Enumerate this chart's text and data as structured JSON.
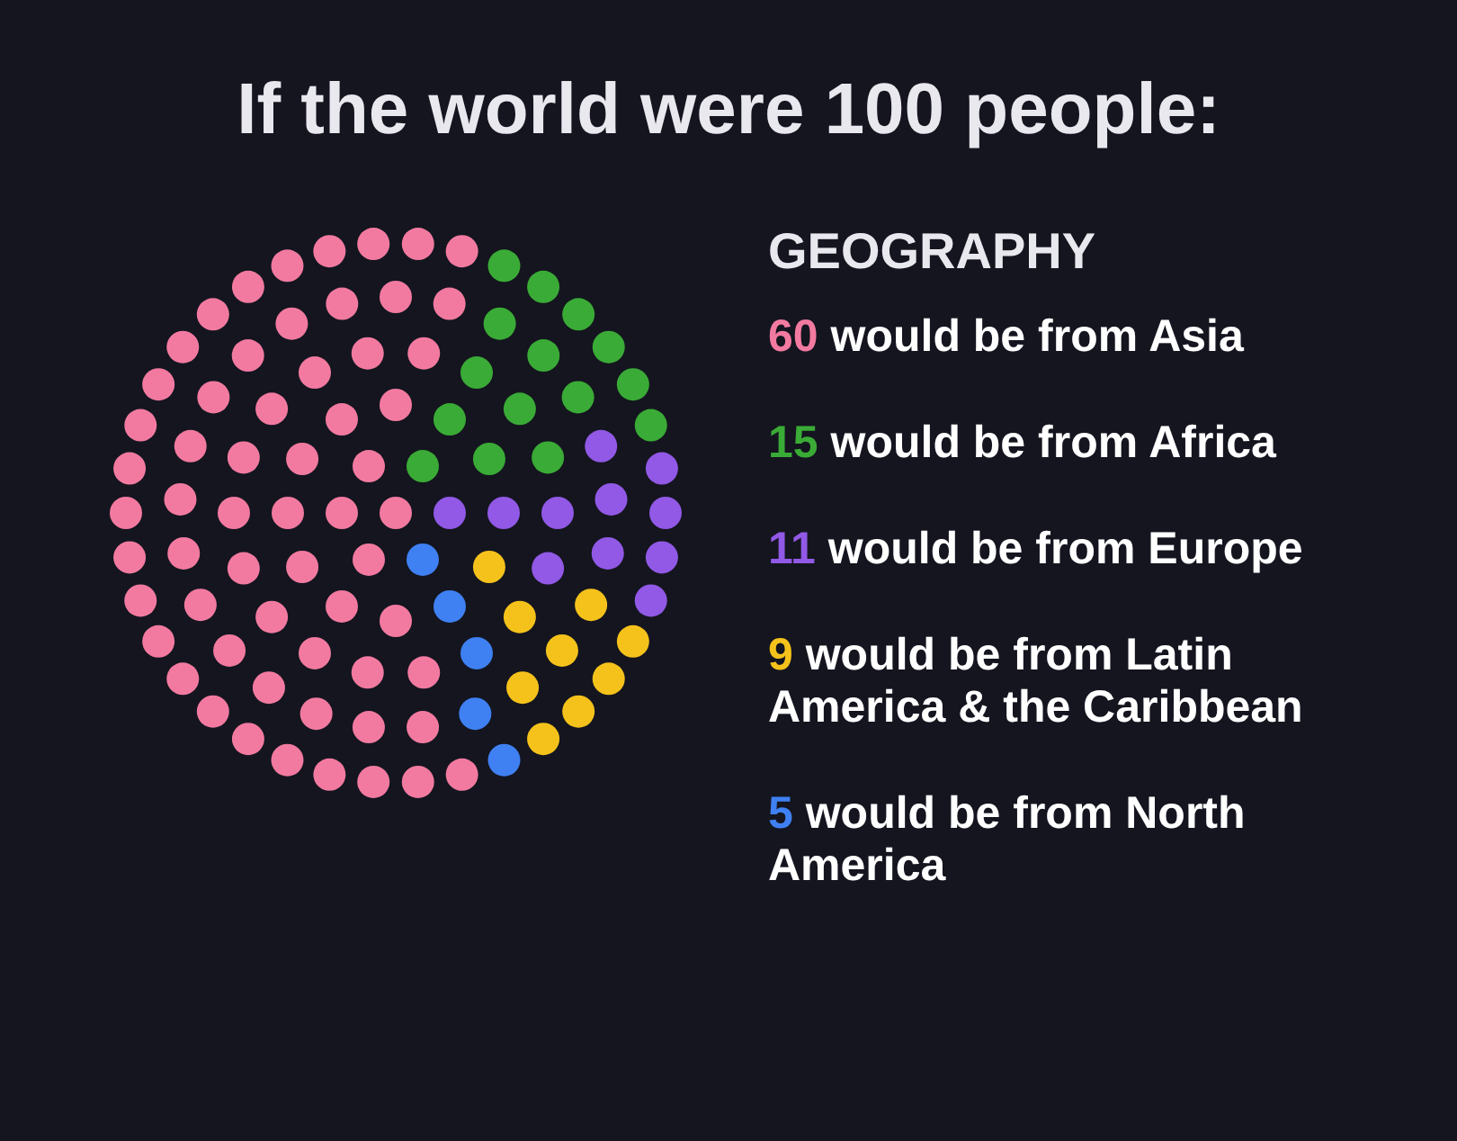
{
  "chart_data": {
    "type": "other",
    "title": "If the world were 100 people:",
    "legend_title": "GEOGRAPHY",
    "categories": [
      "would be from Asia",
      "would be from Africa",
      "would be from Europe",
      "would be from Latin America & the Caribbean",
      "would be from North America"
    ],
    "values": [
      60,
      15,
      11,
      9,
      5
    ],
    "value_labels": [
      "60",
      "15",
      "11",
      "9",
      "5"
    ],
    "colors": [
      "#f27aa0",
      "#3aab36",
      "#9159e6",
      "#f5c21b",
      "#3f80f2"
    ]
  }
}
